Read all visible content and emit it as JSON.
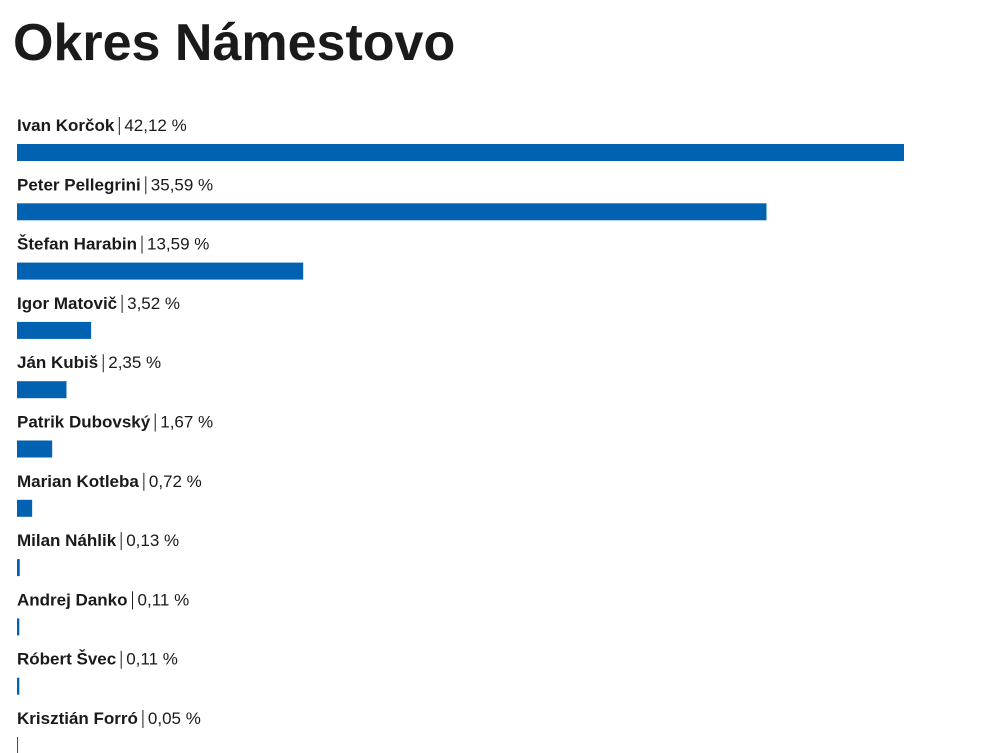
{
  "chart_data": {
    "type": "bar",
    "title": "Okres Námestovo",
    "categories": [
      "Ivan Korčok",
      "Peter Pellegrini",
      "Štefan Harabin",
      "Igor Matovič",
      "Ján Kubiš",
      "Patrik Dubovský",
      "Marian Kotleba",
      "Milan Náhlik",
      "Andrej Danko",
      "Róbert Švec",
      "Krisztián Forró"
    ],
    "values": [
      42.12,
      35.59,
      13.59,
      3.52,
      2.35,
      1.67,
      0.72,
      0.13,
      0.11,
      0.11,
      0.05
    ],
    "value_labels": [
      "42,12 %",
      "35,59 %",
      "13,59 %",
      "3,52 %",
      "2,35 %",
      "1,67 %",
      "0,72 %",
      "0,13 %",
      "0,11 %",
      "0,11 %",
      "0,05 %"
    ],
    "color": "#0062b1"
  }
}
